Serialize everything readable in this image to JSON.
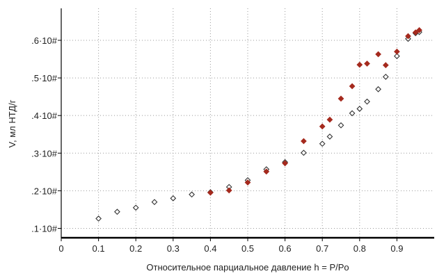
{
  "chart_data": {
    "type": "scatter",
    "title": "",
    "xlabel": "Относительное парциальное давление h = P/Po",
    "ylabel": "V, мл НТД/г",
    "xlim": [
      0,
      1.0
    ],
    "ylim": [
      0.075,
      0.685
    ],
    "grid": true,
    "x_ticks": [
      {
        "v": 0,
        "label": "0"
      },
      {
        "v": 0.1,
        "label": "0.1"
      },
      {
        "v": 0.2,
        "label": "0.2"
      },
      {
        "v": 0.3,
        "label": "0.3"
      },
      {
        "v": 0.4,
        "label": "0.4"
      },
      {
        "v": 0.5,
        "label": "0.5"
      },
      {
        "v": 0.6,
        "label": "0.6"
      },
      {
        "v": 0.7,
        "label": "0.7"
      },
      {
        "v": 0.8,
        "label": "0.8"
      },
      {
        "v": 0.9,
        "label": "0.9"
      }
    ],
    "y_ticks": [
      {
        "v": 0.1,
        "label": ".1·10#"
      },
      {
        "v": 0.2,
        "label": ".2·10#"
      },
      {
        "v": 0.3,
        "label": ".3·10#"
      },
      {
        "v": 0.4,
        "label": ".4·10#"
      },
      {
        "v": 0.5,
        "label": ".5·10#"
      },
      {
        "v": 0.6,
        "label": ".6·10#"
      }
    ],
    "series": [
      {
        "marker": "diamond-open",
        "color": "#333333",
        "points": [
          [
            0.1,
            0.126
          ],
          [
            0.15,
            0.144
          ],
          [
            0.2,
            0.155
          ],
          [
            0.25,
            0.17
          ],
          [
            0.3,
            0.18
          ],
          [
            0.35,
            0.19
          ],
          [
            0.4,
            0.196
          ],
          [
            0.45,
            0.21
          ],
          [
            0.5,
            0.228
          ],
          [
            0.55,
            0.257
          ],
          [
            0.6,
            0.276
          ],
          [
            0.65,
            0.301
          ],
          [
            0.7,
            0.325
          ],
          [
            0.72,
            0.344
          ],
          [
            0.75,
            0.374
          ],
          [
            0.78,
            0.406
          ],
          [
            0.8,
            0.418
          ],
          [
            0.82,
            0.437
          ],
          [
            0.85,
            0.47
          ],
          [
            0.87,
            0.503
          ],
          [
            0.9,
            0.558
          ],
          [
            0.93,
            0.604
          ],
          [
            0.95,
            0.619
          ],
          [
            0.96,
            0.622
          ]
        ]
      },
      {
        "marker": "diamond-filled",
        "color": "#a52a1e",
        "points": [
          [
            0.4,
            0.195
          ],
          [
            0.45,
            0.201
          ],
          [
            0.5,
            0.222
          ],
          [
            0.55,
            0.251
          ],
          [
            0.6,
            0.273
          ],
          [
            0.65,
            0.332
          ],
          [
            0.7,
            0.371
          ],
          [
            0.72,
            0.389
          ],
          [
            0.75,
            0.445
          ],
          [
            0.78,
            0.478
          ],
          [
            0.8,
            0.535
          ],
          [
            0.82,
            0.538
          ],
          [
            0.85,
            0.563
          ],
          [
            0.87,
            0.534
          ],
          [
            0.9,
            0.57
          ],
          [
            0.93,
            0.611
          ],
          [
            0.95,
            0.621
          ],
          [
            0.96,
            0.627
          ]
        ]
      }
    ]
  }
}
